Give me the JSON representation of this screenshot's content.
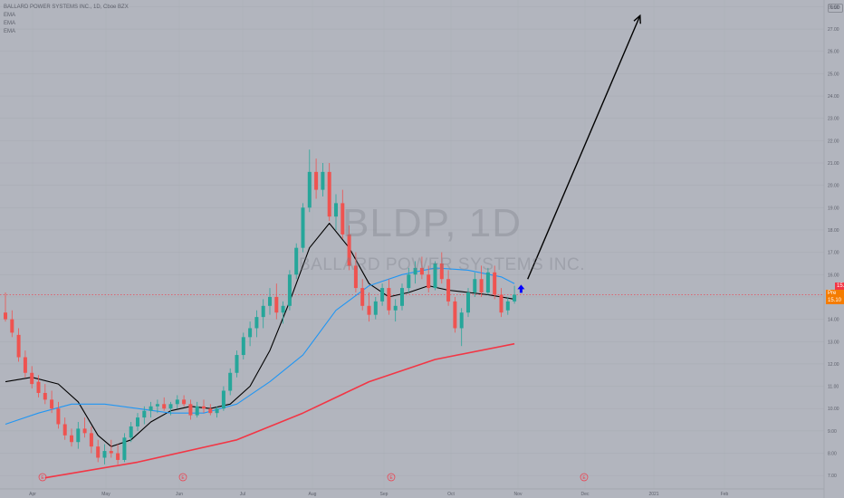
{
  "header": {
    "title_line": "BALLARD POWER SYSTEMS INC., 1D, Cboe BZX",
    "ind1": "EMA",
    "ind2": "EMA",
    "ind3": "EMA"
  },
  "watermark": {
    "symbol": "BLDP, 1D",
    "name": "BALLARD POWER SYSTEMS INC."
  },
  "price_scale": {
    "currency": "USD",
    "last_price_label": "15.10",
    "pre_market_label": "Pre  15.10"
  },
  "colors": {
    "background": "#b2b5be",
    "bull": "#26a69a",
    "bear": "#ef5350",
    "ema_short": "#000000",
    "ema_mid": "#2196f3",
    "ema_long": "#f23645",
    "projection": "#000000",
    "signal_arrow": "#0000ff"
  },
  "chart_data": {
    "type": "candlestick",
    "title": "BALLARD POWER SYSTEMS INC., 1D, Cboe BZX",
    "ylim": [
      6.4,
      28.3
    ],
    "y_ticks": [
      "28.00",
      "27.00",
      "26.00",
      "25.00",
      "24.00",
      "23.00",
      "22.00",
      "21.00",
      "20.00",
      "19.00",
      "18.00",
      "17.00",
      "16.00",
      "15.00",
      "14.00",
      "13.00",
      "12.00",
      "11.00",
      "10.00",
      "9.00",
      "8.00",
      "7.00"
    ],
    "x_ticks": [
      "Apr",
      "May",
      "Jun",
      "Jul",
      "Aug",
      "Sep",
      "Oct",
      "Nov",
      "Dec",
      "2021",
      "Feb"
    ],
    "candles": [
      [
        14.3,
        15.2,
        13.9,
        14.0
      ],
      [
        14.0,
        14.4,
        13.2,
        13.4
      ],
      [
        13.3,
        13.6,
        12.1,
        12.3
      ],
      [
        12.3,
        12.6,
        11.4,
        11.6
      ],
      [
        11.6,
        11.9,
        10.9,
        11.1
      ],
      [
        11.2,
        11.5,
        10.5,
        10.7
      ],
      [
        10.7,
        11.1,
        10.2,
        10.4
      ],
      [
        10.4,
        10.8,
        9.8,
        10.0
      ],
      [
        10.0,
        10.3,
        9.1,
        9.3
      ],
      [
        9.3,
        9.6,
        8.6,
        8.8
      ],
      [
        8.8,
        9.1,
        8.3,
        8.5
      ],
      [
        8.5,
        9.4,
        8.2,
        9.1
      ],
      [
        9.1,
        9.6,
        8.7,
        8.9
      ],
      [
        8.9,
        9.2,
        8.0,
        8.3
      ],
      [
        8.3,
        8.6,
        7.6,
        7.8
      ],
      [
        7.8,
        8.4,
        7.5,
        8.1
      ],
      [
        8.1,
        8.6,
        7.8,
        8.0
      ],
      [
        8.0,
        8.4,
        7.5,
        7.7
      ],
      [
        7.7,
        8.9,
        7.6,
        8.7
      ],
      [
        8.7,
        9.4,
        8.5,
        9.2
      ],
      [
        9.2,
        9.8,
        9.0,
        9.6
      ],
      [
        9.6,
        10.1,
        9.3,
        9.9
      ],
      [
        9.9,
        10.3,
        9.6,
        10.1
      ],
      [
        10.1,
        10.4,
        9.8,
        10.2
      ],
      [
        10.2,
        10.5,
        9.9,
        10.0
      ],
      [
        10.0,
        10.3,
        9.7,
        10.2
      ],
      [
        10.2,
        10.6,
        10.0,
        10.4
      ],
      [
        10.4,
        10.6,
        10.1,
        10.2
      ],
      [
        10.2,
        10.4,
        9.5,
        9.7
      ],
      [
        9.7,
        10.3,
        9.6,
        10.1
      ],
      [
        10.1,
        10.4,
        9.8,
        10.0
      ],
      [
        10.0,
        10.2,
        9.7,
        9.8
      ],
      [
        9.8,
        10.1,
        9.6,
        10.0
      ],
      [
        10.0,
        11.0,
        9.9,
        10.8
      ],
      [
        10.8,
        11.8,
        10.6,
        11.6
      ],
      [
        11.6,
        12.6,
        11.4,
        12.4
      ],
      [
        12.4,
        13.4,
        12.2,
        13.2
      ],
      [
        13.2,
        13.9,
        12.8,
        13.6
      ],
      [
        13.6,
        14.4,
        13.2,
        14.1
      ],
      [
        14.1,
        14.9,
        13.6,
        14.6
      ],
      [
        14.6,
        15.4,
        14.2,
        15.0
      ],
      [
        15.0,
        15.6,
        14.0,
        14.3
      ],
      [
        14.3,
        14.8,
        13.8,
        14.6
      ],
      [
        14.6,
        16.2,
        14.4,
        16.0
      ],
      [
        16.0,
        17.4,
        15.8,
        17.2
      ],
      [
        17.2,
        19.2,
        17.0,
        19.0
      ],
      [
        19.0,
        21.6,
        18.8,
        20.6
      ],
      [
        20.6,
        21.2,
        19.4,
        19.8
      ],
      [
        19.8,
        21.0,
        19.5,
        20.6
      ],
      [
        20.6,
        21.0,
        18.4,
        18.6
      ],
      [
        18.6,
        19.6,
        18.0,
        19.2
      ],
      [
        19.2,
        19.8,
        17.6,
        17.8
      ],
      [
        17.8,
        18.2,
        16.2,
        16.4
      ],
      [
        16.4,
        17.0,
        15.2,
        15.4
      ],
      [
        15.4,
        15.8,
        14.4,
        14.6
      ],
      [
        14.6,
        15.2,
        13.9,
        14.2
      ],
      [
        14.2,
        15.0,
        14.0,
        14.8
      ],
      [
        14.8,
        15.6,
        14.6,
        15.4
      ],
      [
        15.4,
        15.8,
        14.2,
        14.4
      ],
      [
        14.4,
        14.9,
        13.9,
        14.6
      ],
      [
        14.6,
        15.6,
        14.4,
        15.4
      ],
      [
        15.4,
        16.3,
        15.2,
        16.0
      ],
      [
        16.0,
        16.6,
        15.6,
        16.3
      ],
      [
        16.3,
        16.8,
        15.8,
        16.0
      ],
      [
        16.0,
        16.4,
        15.2,
        15.4
      ],
      [
        15.4,
        16.6,
        15.3,
        16.5
      ],
      [
        16.5,
        17.0,
        15.6,
        15.8
      ],
      [
        15.8,
        16.2,
        14.6,
        14.8
      ],
      [
        14.8,
        15.0,
        13.4,
        13.6
      ],
      [
        13.6,
        14.5,
        12.8,
        14.3
      ],
      [
        14.3,
        15.4,
        14.1,
        15.2
      ],
      [
        15.2,
        16.1,
        15.0,
        15.8
      ],
      [
        15.8,
        16.4,
        15.0,
        15.2
      ],
      [
        15.2,
        16.3,
        15.1,
        16.1
      ],
      [
        16.1,
        16.4,
        14.9,
        15.1
      ],
      [
        15.1,
        15.4,
        14.1,
        14.3
      ],
      [
        14.4,
        15.0,
        14.2,
        14.8
      ],
      [
        14.8,
        15.5,
        14.7,
        15.1
      ]
    ],
    "series": [
      {
        "name": "EMA",
        "color": "#000000",
        "values": [
          [
            0,
            11.2
          ],
          [
            4,
            11.4
          ],
          [
            8,
            11.1
          ],
          [
            11,
            10.3
          ],
          [
            14,
            8.8
          ],
          [
            16,
            8.3
          ],
          [
            19,
            8.6
          ],
          [
            22,
            9.4
          ],
          [
            25,
            9.9
          ],
          [
            28,
            10.1
          ],
          [
            31,
            10.0
          ],
          [
            34,
            10.2
          ],
          [
            37,
            11.0
          ],
          [
            40,
            12.6
          ],
          [
            43,
            14.8
          ],
          [
            46,
            17.2
          ],
          [
            49,
            18.3
          ],
          [
            52,
            17.2
          ],
          [
            55,
            15.6
          ],
          [
            58,
            15.0
          ],
          [
            61,
            15.2
          ],
          [
            64,
            15.5
          ],
          [
            67,
            15.3
          ],
          [
            70,
            15.2
          ],
          [
            73,
            15.1
          ],
          [
            77,
            14.9
          ]
        ]
      },
      {
        "name": "EMA",
        "color": "#2196f3",
        "values": [
          [
            0,
            9.3
          ],
          [
            5,
            9.8
          ],
          [
            10,
            10.2
          ],
          [
            15,
            10.2
          ],
          [
            20,
            10.0
          ],
          [
            25,
            9.8
          ],
          [
            30,
            9.8
          ],
          [
            35,
            10.2
          ],
          [
            40,
            11.2
          ],
          [
            45,
            12.4
          ],
          [
            50,
            14.4
          ],
          [
            55,
            15.5
          ],
          [
            60,
            16.0
          ],
          [
            65,
            16.3
          ],
          [
            70,
            16.2
          ],
          [
            75,
            15.9
          ],
          [
            77,
            15.6
          ]
        ]
      },
      {
        "name": "EMA",
        "color": "#f23645",
        "values": [
          [
            6,
            6.9
          ],
          [
            20,
            7.6
          ],
          [
            35,
            8.6
          ],
          [
            45,
            9.8
          ],
          [
            55,
            11.2
          ],
          [
            65,
            12.2
          ],
          [
            77,
            12.9
          ]
        ]
      }
    ],
    "projection_arrow": {
      "from": [
        79,
        15.8
      ],
      "to": [
        96,
        27.6
      ]
    },
    "signal_arrow_at": [
      78,
      15.35
    ],
    "event_markers": [
      "E",
      "E",
      "E",
      "E"
    ]
  }
}
